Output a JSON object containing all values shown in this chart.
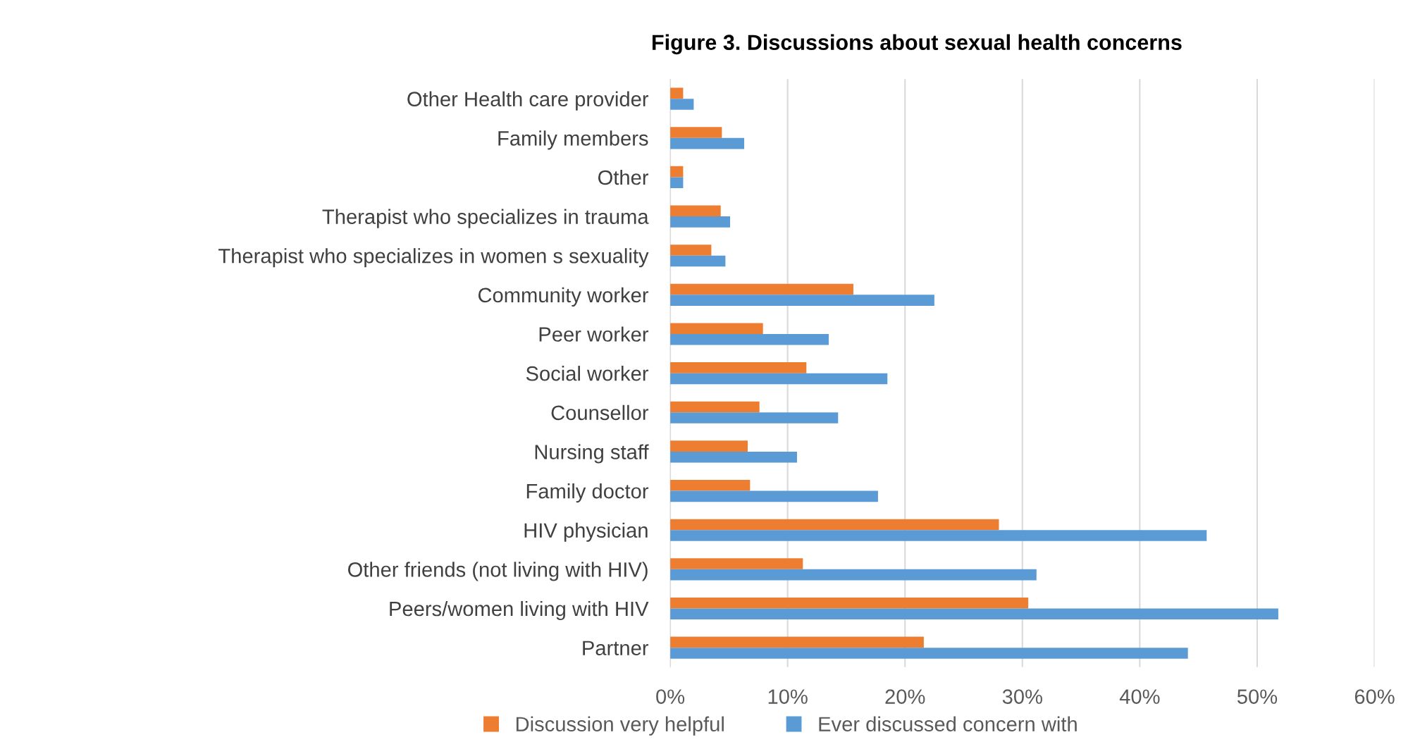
{
  "chart_data": {
    "type": "bar",
    "orientation": "horizontal",
    "title": "Figure 3. Discussions about sexual health concerns",
    "categories": [
      "Other Health care provider",
      "Family members",
      "Other",
      "Therapist who specializes in trauma",
      "Therapist who specializes in women s sexuality",
      "Community worker",
      "Peer worker",
      "Social worker",
      "Counsellor",
      "Nursing staff",
      "Family doctor",
      "HIV physician",
      "Other friends (not living with HIV)",
      "Peers/women living with HIV",
      "Partner"
    ],
    "series": [
      {
        "name": "Discussion very helpful",
        "color": "#ed7d31",
        "values": [
          1.1,
          4.4,
          1.1,
          4.3,
          3.5,
          15.6,
          7.9,
          11.6,
          7.6,
          6.6,
          6.8,
          28.0,
          11.3,
          30.5,
          21.6
        ]
      },
      {
        "name": "Ever discussed concern with",
        "color": "#5b9bd5",
        "values": [
          2.0,
          6.3,
          1.1,
          5.1,
          4.7,
          22.5,
          13.5,
          18.5,
          14.3,
          10.8,
          17.7,
          45.7,
          31.2,
          51.8,
          44.1
        ]
      }
    ],
    "xlim": [
      0,
      60
    ],
    "xticks": [
      {
        "value": 0,
        "label": "0%"
      },
      {
        "value": 10,
        "label": "10%"
      },
      {
        "value": 20,
        "label": "20%"
      },
      {
        "value": 30,
        "label": "30%"
      },
      {
        "value": 40,
        "label": "40%"
      },
      {
        "value": 50,
        "label": "50%"
      },
      {
        "value": 60,
        "label": "60%"
      }
    ],
    "grid": "x",
    "legend": "bottom"
  }
}
